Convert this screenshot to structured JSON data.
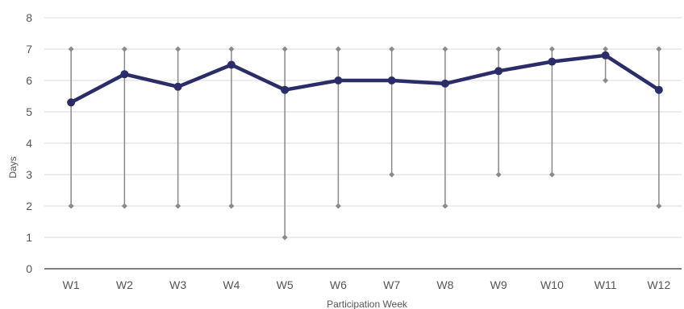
{
  "chart_data": {
    "type": "line",
    "title": "",
    "xlabel": "Participation Week",
    "ylabel": "Days",
    "ylim": [
      0,
      8
    ],
    "yticks": [
      0,
      1,
      2,
      3,
      4,
      5,
      6,
      7,
      8
    ],
    "categories": [
      "W1",
      "W2",
      "W3",
      "W4",
      "W5",
      "W6",
      "W7",
      "W8",
      "W9",
      "W10",
      "W11",
      "W12"
    ],
    "series": [
      {
        "values": [
          5.3,
          6.2,
          5.8,
          6.5,
          5.7,
          6.0,
          6.0,
          5.9,
          6.3,
          6.6,
          6.8,
          5.7
        ]
      }
    ],
    "range": {
      "max": [
        7,
        7,
        7,
        7,
        7,
        7,
        7,
        7,
        7,
        7,
        7,
        7
      ],
      "min": [
        2,
        2,
        2,
        2,
        1,
        2,
        3,
        2,
        3,
        3,
        6,
        2
      ]
    },
    "grid": true,
    "colors": {
      "line": "#2b2d69",
      "range": "#8a8a8a",
      "grid": "#d9d9d9",
      "axis": "#000000"
    }
  }
}
